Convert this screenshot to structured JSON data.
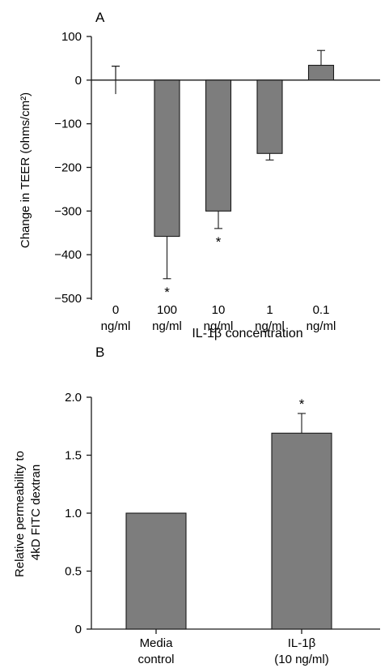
{
  "chart_data": [
    {
      "panel": "A",
      "type": "bar",
      "categories": [
        "0",
        "100",
        "10",
        "1",
        "0.1"
      ],
      "category_units": [
        "ng/ml",
        "ng/ml",
        "ng/ml",
        "ng/ml",
        "ng/ml"
      ],
      "values": [
        0,
        -358,
        -300,
        -168,
        34
      ],
      "errors": [
        32,
        97,
        40,
        15,
        34
      ],
      "significant": [
        false,
        true,
        true,
        false,
        false
      ],
      "significance_marker": "*",
      "xlabel": "IL-1β  concentration",
      "ylabel": "Change in TEER (ohms/cm²)",
      "ylim": [
        -500,
        100
      ],
      "yticks": [
        "100",
        "0",
        "−100",
        "−200",
        "−300",
        "−400",
        "−500"
      ],
      "bar_color": "#7d7d7d",
      "grid": false
    },
    {
      "panel": "B",
      "type": "bar",
      "categories": [
        "Media control",
        "IL-1β (10 ng/ml)"
      ],
      "category_lines": [
        [
          "Media",
          "control"
        ],
        [
          "IL-1β",
          "(10 ng/ml)"
        ]
      ],
      "values": [
        1.0,
        1.69
      ],
      "errors": [
        0.0,
        0.17
      ],
      "significant": [
        false,
        true
      ],
      "significance_marker": "*",
      "xlabel": "",
      "ylabel_lines": [
        "Relative permeability to",
        "4kD FITC dextran"
      ],
      "ylim": [
        0,
        2.0
      ],
      "yticks": [
        "0",
        "0.5",
        "1.0",
        "1.5",
        "2.0"
      ],
      "bar_color": "#7d7d7d",
      "grid": false
    }
  ]
}
